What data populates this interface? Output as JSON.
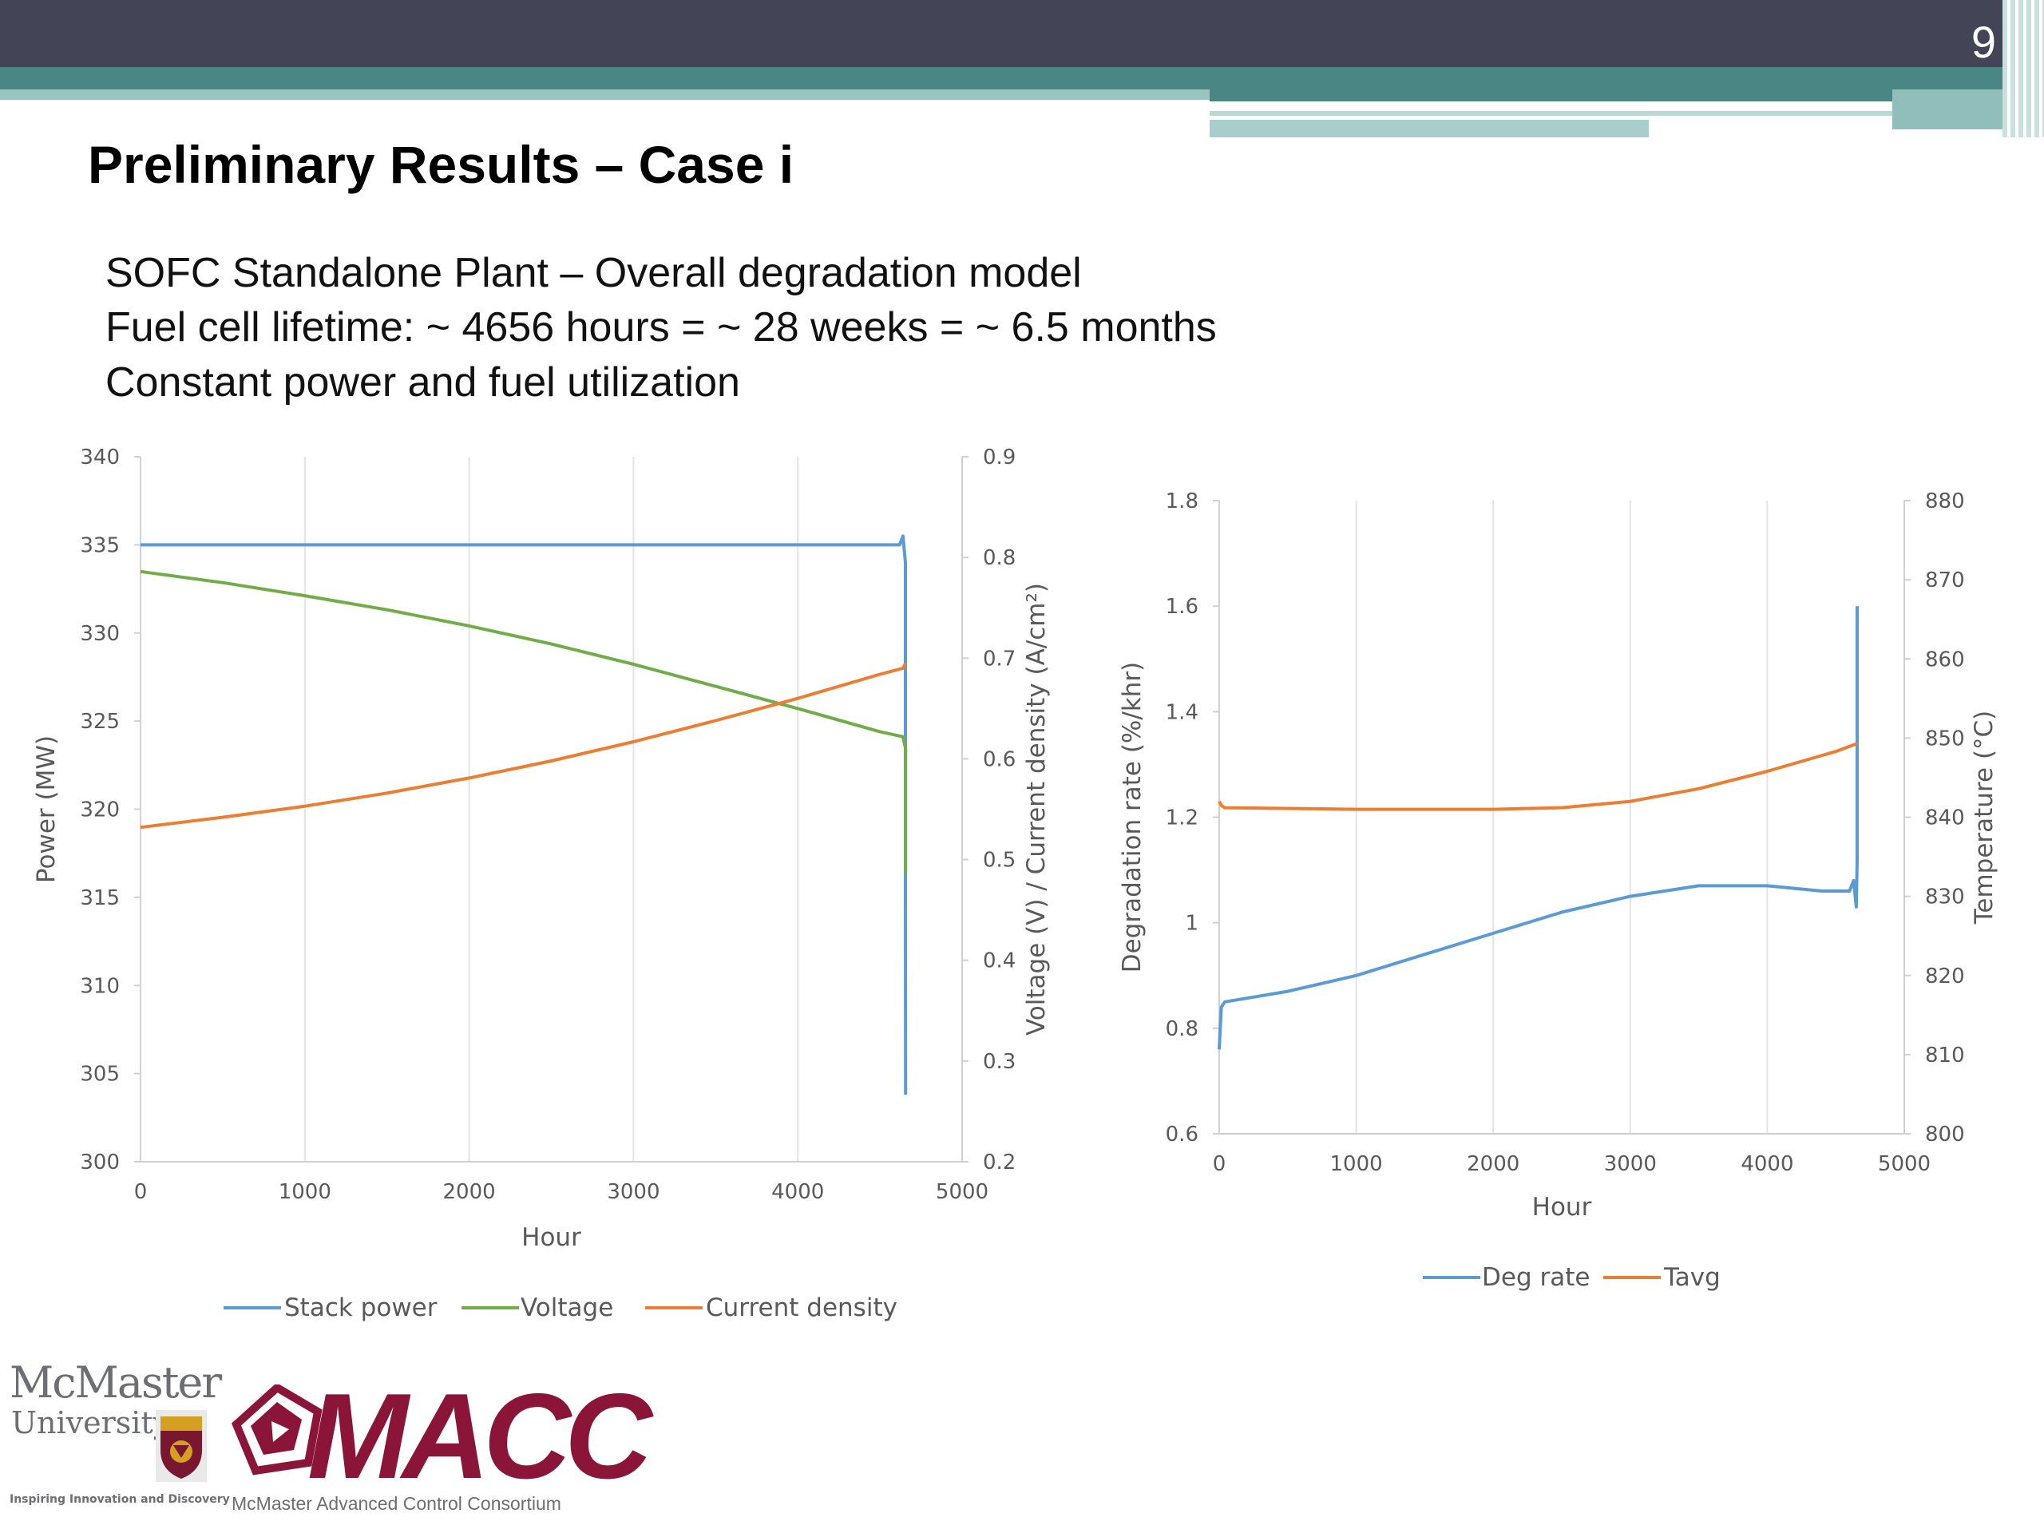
{
  "slide": {
    "number": "9",
    "title": "Preliminary Results – Case i",
    "lines": [
      "SOFC Standalone Plant – Overall degradation model",
      "Fuel cell lifetime: ~ 4656 hours = ~ 28 weeks = ~ 6.5 months",
      "Constant power and fuel utilization"
    ]
  },
  "logos": {
    "mcmaster": {
      "line1": "McMaster",
      "line2": "University",
      "tagline": "Inspiring Innovation and Discovery"
    },
    "macc": {
      "word": "MACC",
      "sub": "McMaster Advanced Control Consortium"
    }
  },
  "colors": {
    "blue": "#5b9bd5",
    "green": "#70ad47",
    "orange": "#ed7d31",
    "header": "#434556",
    "teal": "#4a8683",
    "macc": "#8a1538"
  },
  "chart_data": [
    {
      "type": "line",
      "xlabel": "Hour",
      "ylabel": "Power (MW)",
      "y2label": "Voltage (V) / Current density (A/cm²)",
      "xlim": [
        0,
        5000
      ],
      "ylim": [
        300,
        340
      ],
      "y2lim": [
        0.2,
        0.9
      ],
      "xticks": [
        "0",
        "1000",
        "2000",
        "3000",
        "4000",
        "5000"
      ],
      "yticks": [
        "300",
        "305",
        "310",
        "315",
        "320",
        "325",
        "330",
        "335",
        "340"
      ],
      "y2ticks": [
        "0.2",
        "0.3",
        "0.4",
        "0.5",
        "0.6",
        "0.7",
        "0.8",
        "0.9"
      ],
      "grid": "vertical",
      "legend": "bottom",
      "series": [
        {
          "name": "Stack power",
          "axis": "left",
          "color": "#5b9bd5",
          "x": [
            0,
            40,
            500,
            1000,
            2000,
            3000,
            4000,
            4500,
            4620,
            4640,
            4655,
            4655,
            4656
          ],
          "y": [
            335.0,
            335.0,
            335.0,
            335.0,
            335.0,
            335.0,
            335.0,
            335.0,
            335.0,
            335.5,
            334.0,
            316.0,
            303.8
          ]
        },
        {
          "name": "Voltage",
          "axis": "right",
          "color": "#70ad47",
          "x": [
            0,
            500,
            1000,
            1500,
            2000,
            2500,
            3000,
            3500,
            4000,
            4500,
            4640,
            4656,
            4656
          ],
          "y": [
            0.786,
            0.775,
            0.762,
            0.748,
            0.732,
            0.714,
            0.694,
            0.672,
            0.65,
            0.627,
            0.622,
            0.61,
            0.486
          ]
        },
        {
          "name": "Current density",
          "axis": "right",
          "color": "#ed7d31",
          "x": [
            0,
            500,
            1000,
            1500,
            2000,
            2500,
            3000,
            3500,
            4000,
            4500,
            4640,
            4656
          ],
          "y": [
            0.532,
            0.542,
            0.553,
            0.566,
            0.581,
            0.598,
            0.617,
            0.638,
            0.66,
            0.684,
            0.69,
            0.695
          ]
        }
      ]
    },
    {
      "type": "line",
      "xlabel": "Hour",
      "ylabel": "Degradation rate (%/khr)",
      "y2label": "Temperature (°C)",
      "xlim": [
        0,
        5000
      ],
      "ylim": [
        0.6,
        1.8
      ],
      "y2lim": [
        800,
        880
      ],
      "xticks": [
        "0",
        "1000",
        "2000",
        "3000",
        "4000",
        "5000"
      ],
      "yticks": [
        "0.6",
        "0.8",
        "1",
        "1.2",
        "1.4",
        "1.6",
        "1.8"
      ],
      "y2ticks": [
        "800",
        "810",
        "820",
        "830",
        "840",
        "850",
        "860",
        "870",
        "880"
      ],
      "grid": "vertical",
      "legend": "bottom",
      "series": [
        {
          "name": "Deg rate",
          "axis": "left",
          "color": "#5b9bd5",
          "x": [
            0,
            15,
            40,
            500,
            1000,
            1500,
            2000,
            2500,
            3000,
            3500,
            4000,
            4400,
            4600,
            4630,
            4650,
            4656,
            4656
          ],
          "y": [
            0.76,
            0.84,
            0.85,
            0.87,
            0.9,
            0.94,
            0.98,
            1.02,
            1.05,
            1.07,
            1.07,
            1.06,
            1.06,
            1.08,
            1.03,
            1.12,
            1.6
          ]
        },
        {
          "name": "Tavg",
          "axis": "right",
          "color": "#ed7d31",
          "x": [
            0,
            15,
            40,
            1000,
            2000,
            2500,
            3000,
            3500,
            4000,
            4500,
            4656
          ],
          "y": [
            842,
            841.5,
            841.2,
            841.0,
            841.0,
            841.2,
            842.0,
            843.6,
            845.8,
            848.3,
            849.3
          ]
        }
      ]
    }
  ]
}
